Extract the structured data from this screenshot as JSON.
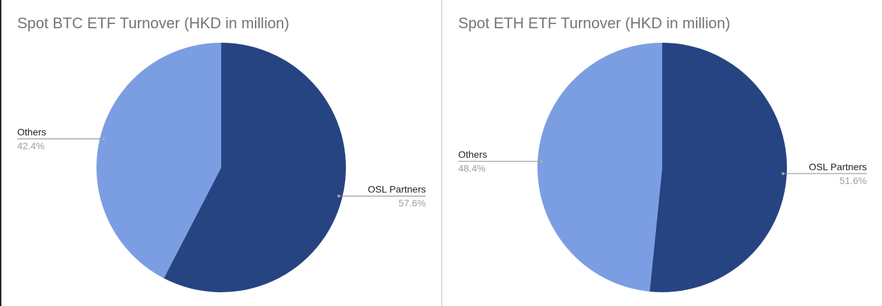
{
  "chart_data": [
    {
      "type": "pie",
      "title": "Spot BTC ETF Turnover (HKD in million)",
      "categories": [
        "OSL Partners",
        "Others"
      ],
      "values": [
        57.6,
        42.4
      ],
      "value_labels": [
        "57.6%",
        "42.4%"
      ],
      "colors": [
        "#264482",
        "#7b9ee3"
      ]
    },
    {
      "type": "pie",
      "title": "Spot ETH ETF Turnover (HKD in million)",
      "categories": [
        "OSL Partners",
        "Others"
      ],
      "values": [
        51.6,
        48.4
      ],
      "value_labels": [
        "51.6%",
        "48.4%"
      ],
      "colors": [
        "#264482",
        "#7b9ee3"
      ]
    }
  ]
}
